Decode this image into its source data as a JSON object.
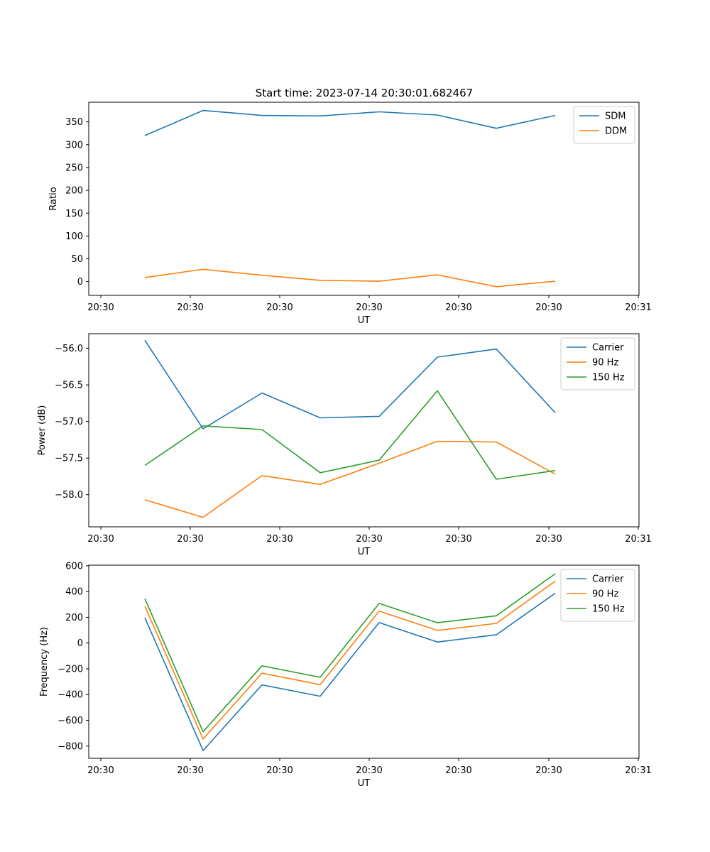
{
  "figure_title": "Start time: 2023-07-14 20:30:01.682467",
  "chart_data": [
    {
      "type": "line",
      "title": "Start time: 2023-07-14 20:30:01.682467",
      "xlabel": "UT",
      "ylabel": "Ratio",
      "x_ticks": [
        "20:30",
        "20:30",
        "20:30",
        "20:30",
        "20:30",
        "20:30",
        "20:31"
      ],
      "y_ticks": [
        "0",
        "50",
        "100",
        "150",
        "200",
        "250",
        "300",
        "350"
      ],
      "y_tick_values": [
        0,
        50,
        100,
        150,
        200,
        250,
        300,
        350
      ],
      "ylim": [
        -30,
        393
      ],
      "legend_position": "upper right",
      "series": [
        {
          "name": "SDM",
          "color": "#1f77b4",
          "values": [
            320,
            375,
            364,
            363,
            372,
            365,
            336,
            364
          ]
        },
        {
          "name": "DDM",
          "color": "#ff7f0e",
          "values": [
            9,
            27,
            14,
            3,
            1,
            15,
            -11,
            1
          ]
        }
      ]
    },
    {
      "type": "line",
      "title": "",
      "xlabel": "UT",
      "ylabel": "Power (dB)",
      "x_ticks": [
        "20:30",
        "20:30",
        "20:30",
        "20:30",
        "20:30",
        "20:30",
        "20:31"
      ],
      "y_ticks": [
        "−58.0",
        "−57.5",
        "−57.0",
        "−56.5",
        "−56.0"
      ],
      "y_tick_values": [
        -58.0,
        -57.5,
        -57.0,
        -56.5,
        -56.0
      ],
      "ylim": [
        -58.44,
        -55.8
      ],
      "legend_position": "upper right",
      "series": [
        {
          "name": "Carrier",
          "color": "#1f77b4",
          "values": [
            -55.89,
            -57.1,
            -56.61,
            -56.95,
            -56.93,
            -56.12,
            -56.01,
            -56.88
          ]
        },
        {
          "name": "90 Hz",
          "color": "#ff7f0e",
          "values": [
            -58.07,
            -58.31,
            -57.74,
            -57.86,
            -57.57,
            -57.27,
            -57.28,
            -57.72
          ]
        },
        {
          "name": "150 Hz",
          "color": "#2ca02c",
          "values": [
            -57.6,
            -57.06,
            -57.11,
            -57.7,
            -57.53,
            -56.58,
            -57.79,
            -57.67
          ]
        }
      ]
    },
    {
      "type": "line",
      "title": "",
      "xlabel": "UT",
      "ylabel": "Frequency (Hz)",
      "x_ticks": [
        "20:30",
        "20:30",
        "20:30",
        "20:30",
        "20:30",
        "20:30",
        "20:31"
      ],
      "y_ticks": [
        "−800",
        "−600",
        "−400",
        "−200",
        "0",
        "200",
        "400",
        "600"
      ],
      "y_tick_values": [
        -800,
        -600,
        -400,
        -200,
        0,
        200,
        400,
        600
      ],
      "ylim": [
        -895,
        605
      ],
      "legend_position": "upper right",
      "series": [
        {
          "name": "Carrier",
          "color": "#1f77b4",
          "values": [
            197,
            -835,
            -325,
            -413,
            159,
            8,
            64,
            387
          ]
        },
        {
          "name": "90 Hz",
          "color": "#ff7f0e",
          "values": [
            287,
            -745,
            -234,
            -323,
            249,
            98,
            153,
            481
          ]
        },
        {
          "name": "150 Hz",
          "color": "#2ca02c",
          "values": [
            345,
            -689,
            -177,
            -266,
            308,
            158,
            212,
            538
          ]
        }
      ]
    }
  ]
}
